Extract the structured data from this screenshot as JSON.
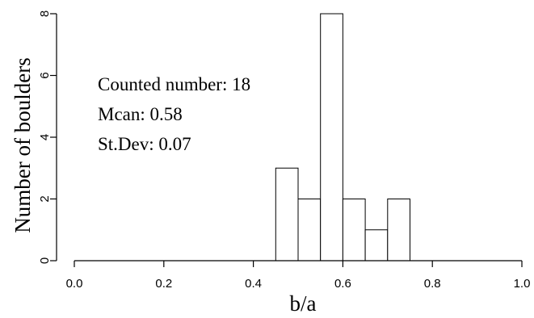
{
  "chart_data": {
    "type": "bar",
    "xlabel": "b/a",
    "ylabel": "Number of boulders",
    "xlim": [
      0,
      1
    ],
    "ylim": [
      0,
      8
    ],
    "x_ticks": [
      "0.0",
      "0.2",
      "0.4",
      "0.6",
      "0.8",
      "1.0"
    ],
    "y_ticks": [
      "0",
      "2",
      "4",
      "6",
      "8"
    ],
    "bin_width": 0.05,
    "bins": [
      {
        "start": 0.45,
        "end": 0.5,
        "count": 3
      },
      {
        "start": 0.5,
        "end": 0.55,
        "count": 2
      },
      {
        "start": 0.55,
        "end": 0.6,
        "count": 8
      },
      {
        "start": 0.6,
        "end": 0.65,
        "count": 2
      },
      {
        "start": 0.65,
        "end": 0.7,
        "count": 1
      },
      {
        "start": 0.7,
        "end": 0.75,
        "count": 2
      }
    ],
    "annotations": [
      "Counted number: 18",
      "Mcan: 0.58",
      "St.Dev: 0.07"
    ],
    "grid": false
  }
}
